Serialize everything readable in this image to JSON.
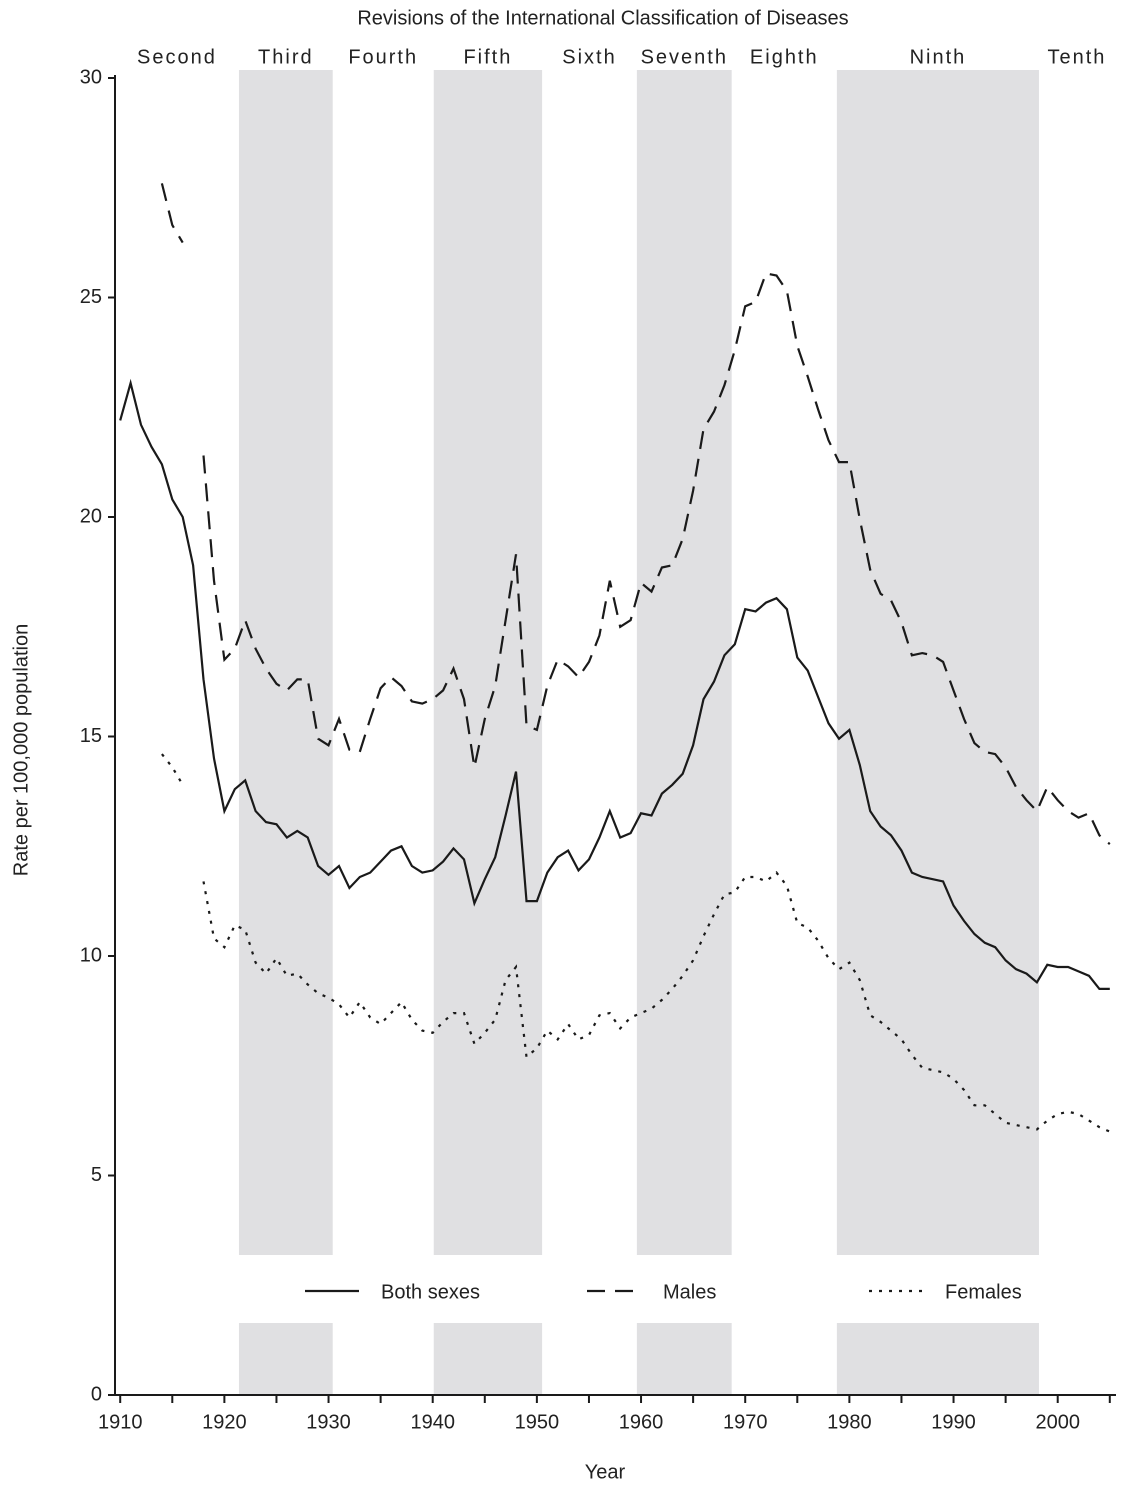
{
  "chart_data": {
    "type": "line",
    "title": "Revisions of the International Classification of Diseases",
    "x_label": "Year",
    "y_label": "Rate per 100,000 population",
    "xlim": [
      1909.5,
      2005.5
    ],
    "ylim": [
      0,
      30
    ],
    "xticks": [
      1910,
      1920,
      1930,
      1940,
      1950,
      1960,
      1970,
      1980,
      1990,
      2000
    ],
    "xminorticks": [
      1915,
      1925,
      1935,
      1945,
      1955,
      1965,
      1975,
      1985,
      1995,
      2005
    ],
    "yticks": [
      0,
      5,
      10,
      15,
      20,
      25,
      30
    ],
    "grid": false,
    "legend": "bottom",
    "band_color": "#e0e0e2",
    "revisions": [
      {
        "label": "Second",
        "start": 1909.5,
        "end": 1921.4,
        "shaded": false
      },
      {
        "label": "Third",
        "start": 1921.4,
        "end": 1930.4,
        "shaded": true
      },
      {
        "label": "Fourth",
        "start": 1930.4,
        "end": 1940.1,
        "shaded": false
      },
      {
        "label": "Fifth",
        "start": 1940.1,
        "end": 1950.5,
        "shaded": true
      },
      {
        "label": "Sixth",
        "start": 1950.5,
        "end": 1959.6,
        "shaded": false
      },
      {
        "label": "Seventh",
        "start": 1959.6,
        "end": 1968.7,
        "shaded": true
      },
      {
        "label": "Eighth",
        "start": 1968.7,
        "end": 1978.8,
        "shaded": false
      },
      {
        "label": "Ninth",
        "start": 1978.8,
        "end": 1998.2,
        "shaded": true
      },
      {
        "label": "Tenth",
        "start": 1998.2,
        "end": 2005.5,
        "shaded": false
      }
    ],
    "x": [
      1910,
      1911,
      1912,
      1913,
      1914,
      1915,
      1916,
      1917,
      1918,
      1919,
      1920,
      1921,
      1922,
      1923,
      1924,
      1925,
      1926,
      1927,
      1928,
      1929,
      1930,
      1931,
      1932,
      1933,
      1934,
      1935,
      1936,
      1937,
      1938,
      1939,
      1940,
      1941,
      1942,
      1943,
      1944,
      1945,
      1946,
      1947,
      1948,
      1949,
      1950,
      1951,
      1952,
      1953,
      1954,
      1955,
      1956,
      1957,
      1958,
      1959,
      1960,
      1961,
      1962,
      1963,
      1964,
      1965,
      1966,
      1967,
      1968,
      1969,
      1970,
      1971,
      1972,
      1973,
      1974,
      1975,
      1976,
      1977,
      1978,
      1979,
      1980,
      1981,
      1982,
      1983,
      1984,
      1985,
      1986,
      1987,
      1988,
      1989,
      1990,
      1991,
      1992,
      1993,
      1994,
      1995,
      1996,
      1997,
      1998,
      1999,
      2000,
      2001,
      2002,
      2003,
      2004,
      2005
    ],
    "series": [
      {
        "name": "Both sexes",
        "color": "#1a1a1a",
        "dash": "solid",
        "values": [
          22.2,
          23.05,
          22.1,
          21.6,
          21.2,
          20.4,
          20.0,
          18.9,
          16.3,
          14.5,
          13.3,
          13.8,
          14.0,
          13.3,
          13.05,
          13.0,
          12.7,
          12.85,
          12.7,
          12.05,
          11.85,
          12.05,
          11.55,
          11.8,
          11.9,
          12.15,
          12.4,
          12.5,
          12.05,
          11.9,
          11.95,
          12.15,
          12.45,
          12.2,
          11.2,
          11.75,
          12.25,
          13.2,
          14.2,
          11.25,
          11.25,
          11.9,
          12.25,
          12.4,
          11.95,
          12.2,
          12.7,
          13.3,
          12.7,
          12.8,
          13.25,
          13.2,
          13.7,
          13.9,
          14.15,
          14.8,
          15.85,
          16.25,
          16.85,
          17.1,
          17.9,
          17.85,
          18.05,
          18.15,
          17.9,
          16.8,
          16.5,
          15.9,
          15.3,
          14.95,
          15.15,
          14.35,
          13.3,
          12.95,
          12.75,
          12.4,
          11.9,
          11.8,
          11.75,
          11.7,
          11.15,
          10.8,
          10.5,
          10.3,
          10.2,
          9.9,
          9.7,
          9.6,
          9.4,
          9.8,
          9.75,
          9.75,
          9.65,
          9.55,
          9.25,
          9.25
        ]
      },
      {
        "name": "Males",
        "color": "#1a1a1a",
        "dash": "dashed",
        "values": [
          null,
          null,
          null,
          null,
          27.6,
          26.65,
          26.25,
          null,
          21.4,
          18.55,
          16.75,
          17.0,
          17.65,
          17.0,
          16.55,
          16.2,
          16.05,
          16.3,
          16.3,
          14.95,
          14.8,
          15.4,
          14.7,
          14.65,
          15.4,
          16.1,
          16.35,
          16.15,
          15.8,
          15.75,
          15.85,
          16.05,
          16.55,
          15.85,
          14.3,
          15.4,
          16.15,
          17.65,
          19.15,
          15.25,
          15.15,
          16.15,
          16.75,
          16.6,
          16.35,
          16.7,
          17.3,
          18.55,
          17.5,
          17.65,
          18.5,
          18.3,
          18.85,
          18.9,
          19.5,
          20.6,
          22.0,
          22.4,
          23.0,
          23.8,
          24.8,
          24.9,
          25.55,
          25.5,
          25.15,
          23.9,
          23.2,
          22.45,
          21.75,
          21.25,
          21.25,
          19.95,
          18.8,
          18.25,
          18.1,
          17.6,
          16.85,
          16.9,
          16.85,
          16.7,
          16.05,
          15.4,
          14.85,
          14.65,
          14.6,
          14.3,
          13.85,
          13.55,
          13.3,
          13.85,
          13.55,
          13.3,
          13.15,
          13.25,
          12.75,
          12.55
        ]
      },
      {
        "name": "Females",
        "color": "#1a1a1a",
        "dash": "dotted",
        "values": [
          null,
          null,
          null,
          null,
          14.6,
          14.3,
          13.9,
          null,
          11.7,
          10.4,
          10.2,
          10.7,
          10.6,
          9.85,
          9.6,
          9.95,
          9.55,
          9.6,
          9.35,
          9.15,
          9.05,
          8.9,
          8.6,
          8.95,
          8.6,
          8.45,
          8.7,
          8.95,
          8.55,
          8.3,
          8.25,
          8.5,
          8.7,
          8.7,
          8.0,
          8.25,
          8.55,
          9.45,
          9.75,
          7.7,
          7.9,
          8.3,
          8.1,
          8.45,
          8.1,
          8.2,
          8.65,
          8.7,
          8.35,
          8.6,
          8.7,
          8.8,
          9.0,
          9.25,
          9.55,
          9.9,
          10.45,
          10.95,
          11.4,
          11.45,
          11.8,
          11.8,
          11.7,
          11.9,
          11.6,
          10.75,
          10.65,
          10.35,
          9.95,
          9.7,
          9.85,
          9.45,
          8.65,
          8.5,
          8.3,
          8.1,
          7.75,
          7.45,
          7.4,
          7.35,
          7.2,
          6.95,
          6.6,
          6.6,
          6.4,
          6.2,
          6.15,
          6.1,
          6.05,
          6.25,
          6.4,
          6.45,
          6.4,
          6.25,
          6.1,
          6.0
        ]
      }
    ]
  }
}
